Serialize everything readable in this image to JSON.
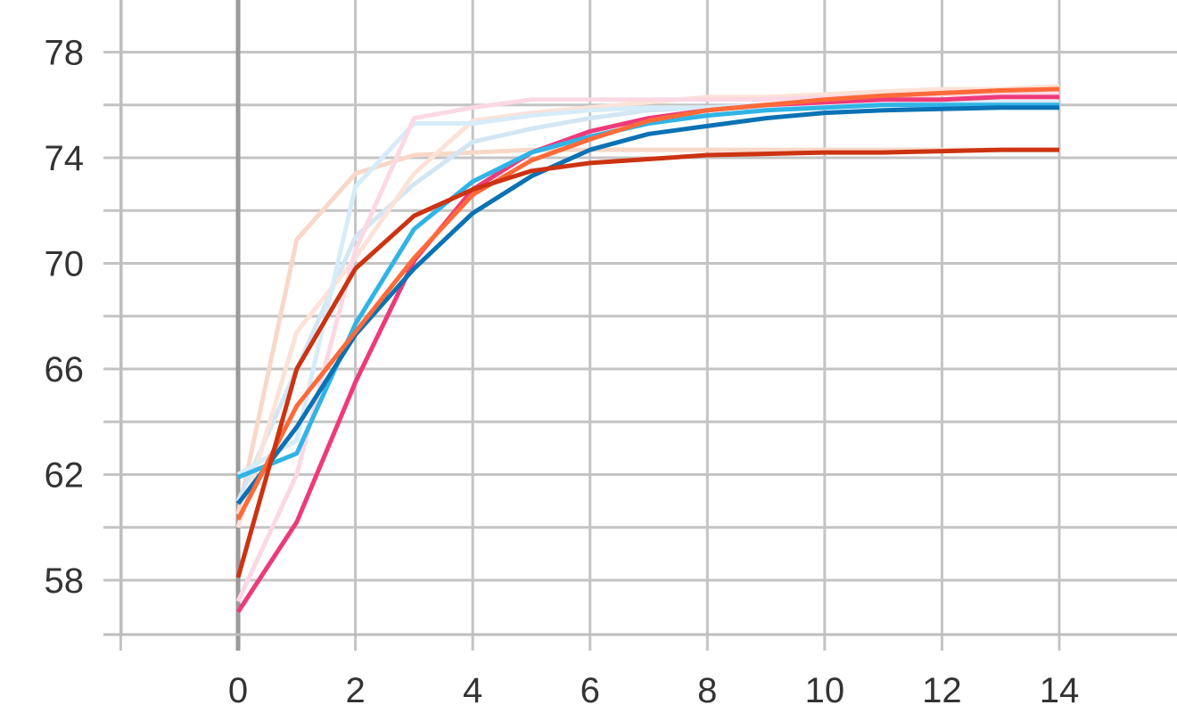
{
  "chart_data": {
    "type": "line",
    "title": "",
    "xlabel": "",
    "ylabel": "",
    "xlim": [
      -2,
      15.8
    ],
    "ylim": [
      55.9,
      80
    ],
    "grid": true,
    "x_ticks": [
      0,
      2,
      4,
      6,
      8,
      10,
      12,
      14
    ],
    "y_ticks": [
      58,
      62,
      66,
      70,
      74,
      78
    ],
    "y_minor_ticks": [
      60,
      64,
      68,
      72,
      76
    ],
    "x_minor_ticks": [
      -2
    ],
    "series": [
      {
        "color": "#f8d8c8",
        "width": 5,
        "x": [
          0,
          1,
          2,
          3,
          4,
          5,
          6,
          7,
          8,
          9,
          10,
          11,
          12,
          13,
          14
        ],
        "values": [
          60.5,
          70.9,
          73.4,
          74.1,
          74.2,
          74.3,
          74.3,
          74.3,
          74.3,
          74.3,
          74.3,
          74.3,
          74.3,
          74.3,
          74.3
        ]
      },
      {
        "color": "#d2e6f4",
        "width": 5,
        "x": [
          0,
          1,
          2,
          3,
          4,
          5,
          6,
          7,
          8,
          9,
          10,
          11,
          12,
          13,
          14
        ],
        "values": [
          61.0,
          66.0,
          71.0,
          73.0,
          74.6,
          75.1,
          75.5,
          75.8,
          75.9,
          75.9,
          76.0,
          76.0,
          76.0,
          76.1,
          76.1
        ]
      },
      {
        "color": "#fde2d8",
        "width": 5,
        "x": [
          0,
          1,
          2,
          3,
          4,
          5,
          6,
          7,
          8,
          9,
          10,
          11,
          12,
          13,
          14
        ],
        "values": [
          60.0,
          67.4,
          70.2,
          73.4,
          75.4,
          75.7,
          75.9,
          76.1,
          76.3,
          76.3,
          76.4,
          76.5,
          76.6,
          76.6,
          76.7
        ]
      },
      {
        "color": "#d6ecf8",
        "width": 5,
        "x": [
          0,
          1,
          2,
          3,
          4,
          5,
          6,
          7,
          8,
          9,
          10,
          11,
          12,
          13,
          14
        ],
        "values": [
          62.0,
          63.3,
          72.9,
          75.3,
          75.3,
          75.6,
          75.8,
          75.9,
          75.9,
          76.0,
          76.0,
          76.0,
          76.1,
          76.1,
          76.1
        ]
      },
      {
        "color": "#fbd8e4",
        "width": 5,
        "x": [
          0,
          1,
          2,
          3,
          4,
          5,
          6,
          7,
          8,
          9,
          10,
          11,
          12,
          13,
          14
        ],
        "values": [
          57.2,
          62.0,
          70.5,
          75.5,
          75.9,
          76.2,
          76.2,
          76.2,
          76.2,
          76.2,
          76.3,
          76.3,
          76.4,
          76.4,
          76.4
        ]
      },
      {
        "color": "#ee3a7a",
        "width": 5,
        "x": [
          0,
          1,
          2,
          3,
          4,
          5,
          6,
          7,
          8,
          9,
          10,
          11,
          12,
          13,
          14
        ],
        "values": [
          56.8,
          60.2,
          65.5,
          70.1,
          72.8,
          74.2,
          75.0,
          75.5,
          75.8,
          76.0,
          76.1,
          76.2,
          76.2,
          76.3,
          76.3
        ]
      },
      {
        "color": "#30b4e6",
        "width": 5,
        "x": [
          0,
          1,
          2,
          3,
          4,
          5,
          6,
          7,
          8,
          9,
          10,
          11,
          12,
          13,
          14
        ],
        "values": [
          61.9,
          62.8,
          67.7,
          71.3,
          73.1,
          74.2,
          74.8,
          75.3,
          75.6,
          75.8,
          75.9,
          76.0,
          76.0,
          76.0,
          76.0
        ]
      },
      {
        "color": "#0a72b4",
        "width": 5,
        "x": [
          0,
          1,
          2,
          3,
          4,
          5,
          6,
          7,
          8,
          9,
          10,
          11,
          12,
          13,
          14
        ],
        "values": [
          60.9,
          63.8,
          67.3,
          69.8,
          71.9,
          73.3,
          74.3,
          74.9,
          75.2,
          75.5,
          75.7,
          75.8,
          75.85,
          75.9,
          75.9
        ]
      },
      {
        "color": "#ff6a38",
        "width": 5,
        "x": [
          0,
          1,
          2,
          3,
          4,
          5,
          6,
          7,
          8,
          9,
          10,
          11,
          12,
          13,
          14
        ],
        "values": [
          60.3,
          64.6,
          67.4,
          70.2,
          72.6,
          73.9,
          74.7,
          75.4,
          75.8,
          76.0,
          76.2,
          76.35,
          76.45,
          76.55,
          76.6
        ]
      },
      {
        "color": "#cc3311",
        "width": 5,
        "x": [
          0,
          1,
          2,
          3,
          4,
          5,
          6,
          7,
          8,
          9,
          10,
          11,
          12,
          13,
          14
        ],
        "values": [
          58.1,
          66.0,
          69.8,
          71.8,
          72.8,
          73.5,
          73.8,
          73.95,
          74.1,
          74.15,
          74.2,
          74.2,
          74.25,
          74.3,
          74.3
        ]
      }
    ]
  }
}
